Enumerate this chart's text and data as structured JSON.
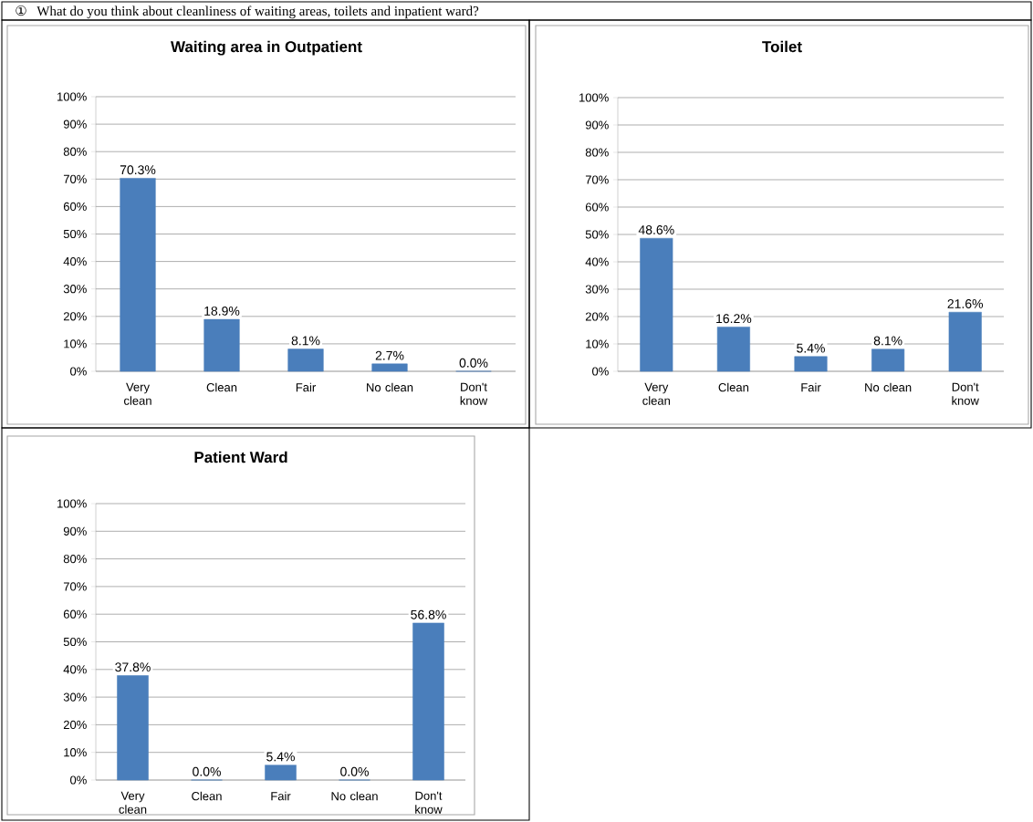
{
  "chart_data": [
    {
      "type": "bar",
      "title": "Waiting area in Outpatient",
      "annotations": [
        "①",
        "What do you think about cleanliness of waiting areas, toilets and inpatient ward?"
      ],
      "categories": [
        "Very clean",
        "Clean",
        "Fair",
        "No clean",
        "Don't know"
      ],
      "values": [
        70.3,
        18.9,
        8.1,
        2.7,
        0.0
      ],
      "value_labels": [
        "70.3%",
        "18.9%",
        "8.1%",
        "2.7%",
        "0.0%"
      ],
      "color": "#4a7ebb",
      "ylim": [
        0,
        100
      ],
      "yticks": [
        {
          "value": 0,
          "label": "0%"
        },
        {
          "value": 10,
          "label": "10%"
        },
        {
          "value": 20,
          "label": "20%"
        },
        {
          "value": 30,
          "label": "30%"
        },
        {
          "value": 40,
          "label": "40%"
        },
        {
          "value": 50,
          "label": "50%"
        },
        {
          "value": 60,
          "label": "60%"
        },
        {
          "value": 70,
          "label": "70%"
        },
        {
          "value": 80,
          "label": "80%"
        },
        {
          "value": 90,
          "label": "90%"
        },
        {
          "value": 100,
          "label": "100%"
        }
      ],
      "grid": "y"
    },
    {
      "type": "bar",
      "title": "Toilet",
      "categories": [
        "Very clean",
        "Clean",
        "Fair",
        "No clean",
        "Don't know"
      ],
      "values": [
        48.6,
        16.2,
        5.4,
        8.1,
        21.6
      ],
      "value_labels": [
        "48.6%",
        "16.2%",
        "5.4%",
        "8.1%",
        "21.6%"
      ],
      "color": "#4a7ebb",
      "ylim": [
        0,
        100
      ],
      "yticks": [
        {
          "value": 0,
          "label": "0%"
        },
        {
          "value": 10,
          "label": "10%"
        },
        {
          "value": 20,
          "label": "20%"
        },
        {
          "value": 30,
          "label": "30%"
        },
        {
          "value": 40,
          "label": "40%"
        },
        {
          "value": 50,
          "label": "50%"
        },
        {
          "value": 60,
          "label": "60%"
        },
        {
          "value": 70,
          "label": "70%"
        },
        {
          "value": 80,
          "label": "80%"
        },
        {
          "value": 90,
          "label": "90%"
        },
        {
          "value": 100,
          "label": "100%"
        }
      ],
      "grid": "y"
    },
    {
      "type": "bar",
      "title": "Patient Ward",
      "categories": [
        "Very clean",
        "Clean",
        "Fair",
        "No clean",
        "Don't know"
      ],
      "values": [
        37.8,
        0.0,
        5.4,
        0.0,
        56.8
      ],
      "value_labels": [
        "37.8%",
        "0.0%",
        "5.4%",
        "0.0%",
        "56.8%"
      ],
      "color": "#4a7ebb",
      "ylim": [
        0,
        100
      ],
      "yticks": [
        {
          "value": 0,
          "label": "0%"
        },
        {
          "value": 10,
          "label": "10%"
        },
        {
          "value": 20,
          "label": "20%"
        },
        {
          "value": 30,
          "label": "30%"
        },
        {
          "value": 40,
          "label": "40%"
        },
        {
          "value": 50,
          "label": "50%"
        },
        {
          "value": 60,
          "label": "60%"
        },
        {
          "value": 70,
          "label": "70%"
        },
        {
          "value": 80,
          "label": "80%"
        },
        {
          "value": 90,
          "label": "90%"
        },
        {
          "value": 100,
          "label": "100%"
        }
      ],
      "grid": "y"
    }
  ]
}
